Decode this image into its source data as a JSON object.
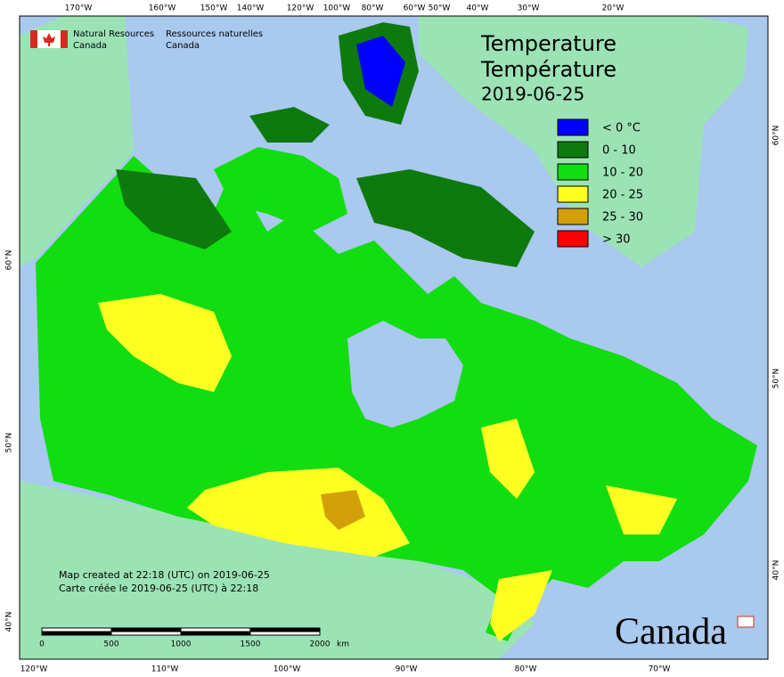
{
  "header": {
    "agency_en": [
      "Natural Resources",
      "Canada"
    ],
    "agency_fr": [
      "Ressources naturelles",
      "Canada"
    ]
  },
  "title": [
    "Temperature",
    "Température",
    "2019-06-25"
  ],
  "legend": [
    {
      "label": "< 0 °C",
      "color": "#0000ff"
    },
    {
      "label": "0 - 10",
      "color": "#0e7a0e"
    },
    {
      "label": "10 - 20",
      "color": "#11dd11"
    },
    {
      "label": "20 - 25",
      "color": "#ffff22"
    },
    {
      "label": "25 - 30",
      "color": "#d4a00a"
    },
    {
      "label": "> 30",
      "color": "#ff0000"
    }
  ],
  "graticule": {
    "top": [
      "170°W",
      "160°W",
      "150°W",
      "140°W",
      "120°W",
      "100°W",
      "80°W",
      "60°W",
      "50°W",
      "40°W",
      "30°W",
      "20°W"
    ],
    "bottom": [
      "120°W",
      "110°W",
      "100°W",
      "90°W",
      "80°W",
      "70°W"
    ],
    "left": [
      "60°N",
      "50°N",
      "40°N"
    ],
    "right": [
      "60°N",
      "50°N",
      "40°N"
    ]
  },
  "credits": [
    "Map created at 22:18 (UTC) on 2019-06-25",
    "Carte créée le 2019-06-25 (UTC) à 22:18"
  ],
  "scale": [
    "0",
    "500",
    "1000",
    "1500",
    "2000",
    "km"
  ],
  "wordmark": "Canada"
}
